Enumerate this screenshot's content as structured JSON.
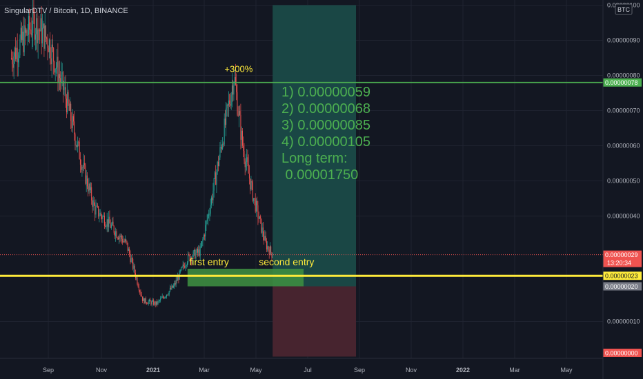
{
  "header": {
    "title": "SingularDTV / Bitcoin, 1D, BINANCE",
    "currency_badge": "BTC"
  },
  "colors": {
    "background": "#131722",
    "grid": "#1f2330",
    "up": "#26a69a",
    "down": "#ef5350",
    "green_line": "#4caf50",
    "yellow_line": "#ffeb3b",
    "profit_zone": "#1a4a48",
    "loss_zone": "#4a2530",
    "entry_zone": "#3d8c40",
    "target_text": "#4caf50",
    "annotation_text": "#ffeb3b"
  },
  "chart_data": {
    "type": "candlestick",
    "x_axis": {
      "ticks": [
        "Sep",
        "Nov",
        "2021",
        "Mar",
        "May",
        "Jul",
        "Sep",
        "Nov",
        "2022",
        "Mar",
        "May"
      ]
    },
    "y_axis": {
      "range": [
        0.0,
        1e-06
      ],
      "ticks": [
        "0.00000100",
        "0.00000090",
        "0.00000080",
        "0.00000070",
        "0.00000060",
        "0.00000050",
        "0.00000040",
        "0.00000010"
      ]
    },
    "price_series_approx": [
      {
        "date": "2020-07-20",
        "price": 8.5e-07
      },
      {
        "date": "2020-08-15",
        "price": 9.5e-07
      },
      {
        "date": "2020-09-01",
        "price": 9e-07
      },
      {
        "date": "2020-09-20",
        "price": 7.5e-07
      },
      {
        "date": "2020-10-10",
        "price": 5.5e-07
      },
      {
        "date": "2020-10-25",
        "price": 4.2e-07
      },
      {
        "date": "2020-11-10",
        "price": 3.8e-07
      },
      {
        "date": "2020-12-01",
        "price": 3.2e-07
      },
      {
        "date": "2020-12-20",
        "price": 1.6e-07
      },
      {
        "date": "2021-01-05",
        "price": 1.5e-07
      },
      {
        "date": "2021-01-25",
        "price": 2e-07
      },
      {
        "date": "2021-02-10",
        "price": 2.8e-07
      },
      {
        "date": "2021-02-25",
        "price": 3e-07
      },
      {
        "date": "2021-03-10",
        "price": 4.5e-07
      },
      {
        "date": "2021-03-25",
        "price": 6.5e-07
      },
      {
        "date": "2021-04-05",
        "price": 8e-07
      },
      {
        "date": "2021-04-15",
        "price": 6e-07
      },
      {
        "date": "2021-04-28",
        "price": 4.5e-07
      },
      {
        "date": "2021-05-12",
        "price": 3.2e-07
      },
      {
        "date": "2021-05-20",
        "price": 2.9e-07
      }
    ],
    "lines": [
      {
        "name": "resistance",
        "value": 7.8e-07,
        "label": "0.00000078",
        "color": "#4caf50"
      },
      {
        "name": "support",
        "value": 2.3e-07,
        "label": "0.00000023",
        "color": "#ffeb3b"
      }
    ],
    "price_labels": [
      {
        "label": "0.00000029",
        "value": 2.9e-07,
        "countdown": "13:20:34",
        "color": "#ef5350"
      },
      {
        "label": "0.00000020",
        "value": 2e-07,
        "color": "#787b86"
      },
      {
        "label": "0.00000000",
        "value": 0.0,
        "color": "#ef5350"
      }
    ],
    "zones": [
      {
        "name": "profit-zone",
        "x0": "2021-05-20",
        "x1": "2021-08-25",
        "y0": 2e-07,
        "y1": 1e-06
      },
      {
        "name": "loss-zone",
        "x0": "2021-05-20",
        "x1": "2021-08-25",
        "y0": 0.0,
        "y1": 2e-07
      },
      {
        "name": "entry-zone",
        "x0": "2021-02-10",
        "x1": "2021-06-25",
        "y0": 2e-07,
        "y1": 2.5e-07
      }
    ],
    "annotations": [
      {
        "name": "gain-label",
        "text": "+300%",
        "x": "2021-03-25",
        "y": 8.1e-07
      },
      {
        "name": "first-entry-label",
        "text": "first entry",
        "x": "2021-02-12",
        "y": 2.6e-07
      },
      {
        "name": "second-entry-label",
        "text": "second entry",
        "x": "2021-05-04",
        "y": 2.6e-07
      }
    ],
    "targets": [
      "1) 0.00000059",
      "2) 0.00000068",
      "3) 0.00000085",
      "4) 0.00000105",
      "Long term:",
      " 0.00001750"
    ]
  }
}
